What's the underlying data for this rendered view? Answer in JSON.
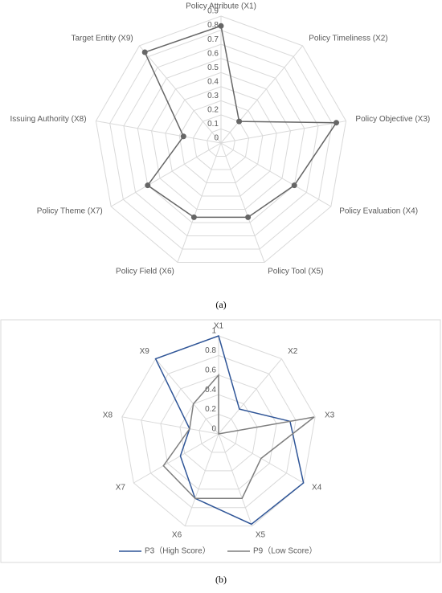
{
  "chart_data": [
    {
      "type": "radar",
      "caption": "(a)",
      "categories": [
        "Policy Attribute (X1)",
        "Policy Timeliness (X2)",
        "Policy Objective (X3)",
        "Policy Evaluation (X4)",
        "Policy Tool (X5)",
        "Policy Field (X6)",
        "Policy Theme (X7)",
        "Issuing Authority (X8)",
        "Target Entity (X9)"
      ],
      "series": [
        {
          "color": "#666666",
          "values": [
            0.83,
            0.2,
            0.83,
            0.6,
            0.56,
            0.56,
            0.6,
            0.27,
            0.84
          ]
        }
      ],
      "ylim": [
        0,
        0.9
      ],
      "yticks": [
        0,
        0.1,
        0.2,
        0.3,
        0.4,
        0.5,
        0.6,
        0.7,
        0.8,
        0.9
      ],
      "markers": true
    },
    {
      "type": "radar",
      "caption": "(b)",
      "categories": [
        "X1",
        "X2",
        "X3",
        "X4",
        "X5",
        "X6",
        "X7",
        "X8",
        "X9"
      ],
      "series": [
        {
          "name": "P3（High Score）",
          "color": "#2f5597",
          "values": [
            1,
            0.33,
            0.74,
            1,
            0.98,
            0.7,
            0.45,
            0.3,
            1
          ]
        },
        {
          "name": "P9（Low Score）",
          "color": "#7f7f7f",
          "values": [
            0.6,
            0,
            0.99,
            0.5,
            0.7,
            0.7,
            0.65,
            0.3,
            0.4
          ]
        }
      ],
      "ylim": [
        0,
        1
      ],
      "yticks": [
        0,
        0.2,
        0.4,
        0.6,
        0.8,
        1
      ],
      "markers": false
    }
  ]
}
